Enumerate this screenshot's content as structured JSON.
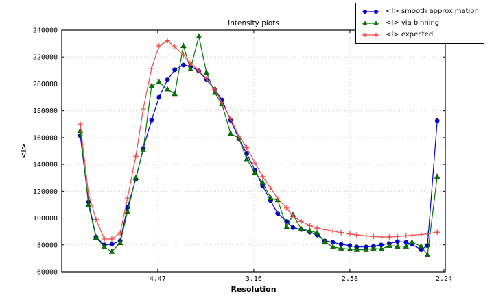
{
  "figure": {
    "title": "Intensity plots",
    "xlabel": "Resolution",
    "ylabel": "<I>",
    "background": "#ffffff",
    "grid_color": "#c8c8c8",
    "axis_color": "#000000"
  },
  "chart_data": {
    "type": "line",
    "title": "Intensity plots",
    "xlabel": "Resolution",
    "ylabel": "<I>",
    "grid": "dotted",
    "legend_position": "top-right",
    "x_axis": {
      "scale": "linear in 1/d^2",
      "range_inv_d2": [
        0.0,
        0.2
      ],
      "tick_labels": [
        "4.47",
        "3.16",
        "2.58",
        "2.24"
      ],
      "tick_resolutions": [
        4.47,
        3.16,
        2.58,
        2.24
      ]
    },
    "y_axis": {
      "min": 60000,
      "max": 240000,
      "tick_step": 20000,
      "tick_labels": [
        "60000",
        "80000",
        "100000",
        "120000",
        "140000",
        "160000",
        "180000",
        "200000",
        "220000",
        "240000"
      ]
    },
    "resolution_A": [
      10.17,
      8.47,
      7.48,
      6.71,
      6.19,
      5.73,
      5.4,
      5.09,
      4.85,
      4.62,
      4.44,
      4.26,
      4.12,
      3.97,
      3.86,
      3.74,
      3.64,
      3.54,
      3.46,
      3.37,
      3.29,
      3.22,
      3.15,
      3.09,
      3.03,
      2.98,
      2.92,
      2.88,
      2.83,
      2.78,
      2.74,
      2.7,
      2.66,
      2.62,
      2.58,
      2.55,
      2.51,
      2.48,
      2.45,
      2.42,
      2.39,
      2.36,
      2.34,
      2.31,
      2.29,
      2.26
    ],
    "series": [
      {
        "name": "<I> smooth approximation",
        "color": "#0000dd",
        "marker": "circle",
        "values": [
          161500,
          112000,
          86000,
          80000,
          80500,
          83000,
          108000,
          129000,
          152000,
          173000,
          190000,
          203000,
          210500,
          214000,
          213000,
          209500,
          203000,
          196000,
          188000,
          173000,
          159000,
          148000,
          135500,
          124000,
          113000,
          103500,
          97500,
          93000,
          91500,
          89500,
          87500,
          83000,
          82000,
          80500,
          79500,
          78500,
          78500,
          79000,
          80000,
          81000,
          82500,
          82000,
          80500,
          76500,
          79500,
          172500
        ]
      },
      {
        "name": "<I> via binning",
        "color": "#007700",
        "marker": "triangle",
        "values": [
          165000,
          110000,
          85500,
          78500,
          75000,
          81500,
          105000,
          130000,
          151000,
          198500,
          201300,
          196000,
          192500,
          228300,
          211000,
          235500,
          208400,
          193500,
          185000,
          163000,
          159500,
          144000,
          134000,
          126500,
          115000,
          113500,
          93500,
          102500,
          92000,
          90500,
          89000,
          82500,
          78500,
          77500,
          77000,
          76500,
          76500,
          77500,
          77000,
          79500,
          79000,
          79000,
          82000,
          79000,
          72500,
          131000
        ]
      },
      {
        "name": "<I> expected",
        "color": "#f04a4a",
        "marker": "plus",
        "values": [
          170000,
          118000,
          99000,
          84500,
          84500,
          89000,
          115000,
          146000,
          181400,
          211500,
          228300,
          232000,
          227700,
          221600,
          215000,
          209900,
          203800,
          196200,
          186000,
          174000,
          161000,
          152500,
          141000,
          131000,
          122500,
          114500,
          107500,
          101500,
          97500,
          94500,
          92500,
          91500,
          90300,
          89200,
          88200,
          87500,
          86800,
          86300,
          86000,
          86000,
          86300,
          86800,
          87300,
          87800,
          88300,
          89500
        ]
      }
    ]
  }
}
